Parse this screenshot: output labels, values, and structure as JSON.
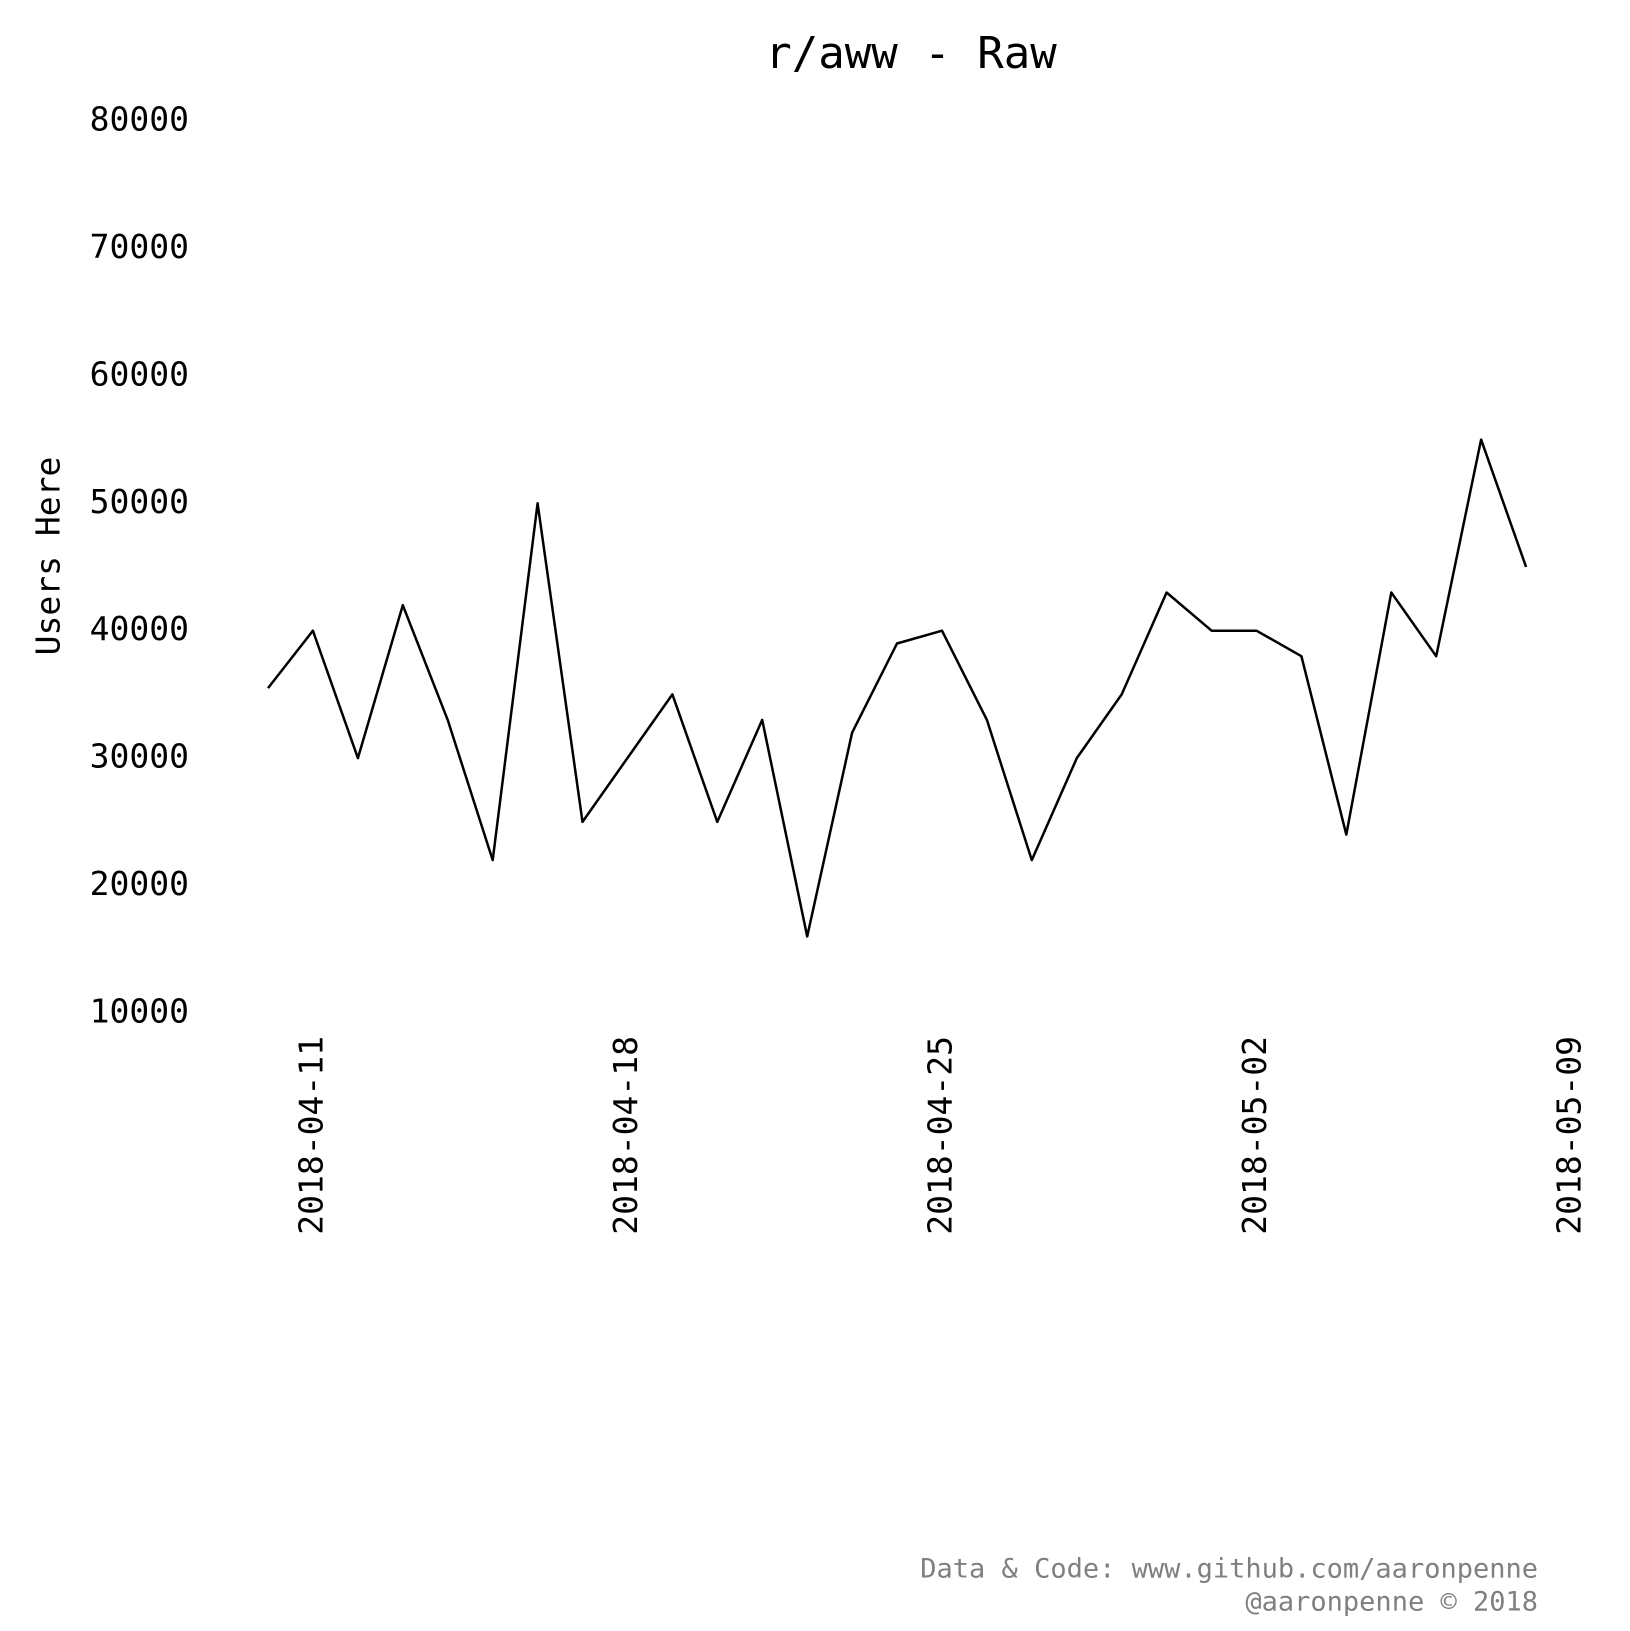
{
  "chart_data": {
    "type": "line",
    "title": "r/aww - Raw",
    "y_label": "Users Here",
    "footer": [
      "Data & Code: www.github.com/aaronpenne",
      "@aaronpenne © 2018"
    ],
    "x": [
      "2018-04-10",
      "2018-04-11",
      "2018-04-12",
      "2018-04-13",
      "2018-04-14",
      "2018-04-15",
      "2018-04-16",
      "2018-04-17",
      "2018-04-18",
      "2018-04-19",
      "2018-04-20",
      "2018-04-21",
      "2018-04-22",
      "2018-04-23",
      "2018-04-24",
      "2018-04-25",
      "2018-04-26",
      "2018-04-27",
      "2018-04-28",
      "2018-04-29",
      "2018-04-30",
      "2018-05-01",
      "2018-05-02",
      "2018-05-03",
      "2018-05-04",
      "2018-05-05",
      "2018-05-06",
      "2018-05-07",
      "2018-05-08"
    ],
    "series": [
      {
        "name": "Users Here",
        "color": "#000000",
        "values": [
          35500,
          40000,
          30000,
          42000,
          33000,
          22000,
          50000,
          25000,
          30000,
          35000,
          25000,
          33000,
          16000,
          32000,
          39000,
          40000,
          33000,
          22000,
          30000,
          35000,
          43000,
          40000,
          40000,
          38000,
          24000,
          43000,
          38000,
          55000,
          45000
        ]
      }
    ],
    "xlim": [
      "2018-04-10",
      "2018-05-09"
    ],
    "xticks": [
      "2018-04-11",
      "2018-04-18",
      "2018-04-25",
      "2018-05-02",
      "2018-05-09"
    ],
    "ylim": [
      10000,
      80000
    ],
    "yticks": [
      10000,
      20000,
      30000,
      40000,
      50000,
      60000,
      70000,
      80000
    ],
    "grid": false
  }
}
